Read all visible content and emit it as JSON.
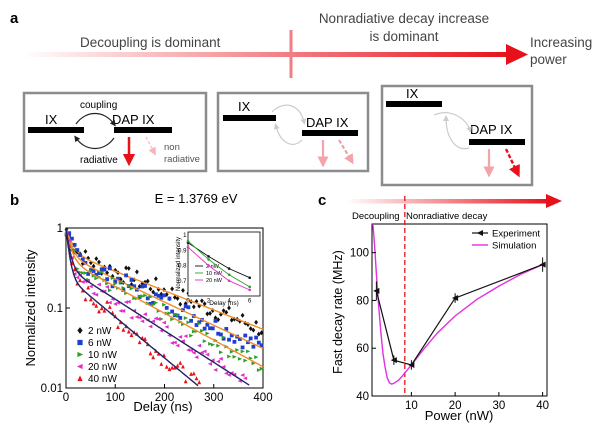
{
  "panel_a": {
    "label": "a",
    "left_text": "Decoupling is dominant",
    "mid_text": [
      "Nonradiative decay increase",
      "is dominant"
    ],
    "right_text": [
      "Increasing",
      "power"
    ],
    "box1": {
      "ix": "IX",
      "dap": "DAP IX",
      "coupling": "coupling",
      "radiative": "radiative",
      "nonrad": [
        "non",
        "radiative"
      ]
    },
    "box2": {
      "ix": "IX",
      "dap": "DAP IX"
    },
    "box3": {
      "ix": "IX",
      "dap": "DAP IX"
    },
    "colors": {
      "red": "#e8101a",
      "pink": "#f4a3a8",
      "grey": "#8c8c8c"
    }
  },
  "panel_b": {
    "label": "b",
    "energy_label": "E = 1.3769 eV"
  },
  "panel_c": {
    "label": "c",
    "left_text": "Decoupling",
    "right_text": "Nonradiative decay"
  },
  "chart_data": [
    {
      "id": "decay",
      "type": "scatter",
      "xlabel": "Delay (ns)",
      "ylabel": "Normalized intensity",
      "xlim": [
        0,
        400
      ],
      "ylim": [
        0.01,
        1
      ],
      "yscale": "log",
      "xticks": [
        0,
        100,
        200,
        300,
        400
      ],
      "yticks": [
        {
          "v": 0.01,
          "label": "0.01"
        },
        {
          "v": 0.1,
          "label": "0.1"
        },
        {
          "v": 1,
          "label": "1"
        }
      ],
      "legend_position": "bottom-left",
      "series": [
        {
          "name": "2 nW",
          "color": "#111111",
          "marker": "diamond",
          "fast": [
            0.5,
            12
          ],
          "slow": [
            0.5,
            180
          ],
          "fit": "#f28c28"
        },
        {
          "name": "6 nW",
          "color": "#1f3fd0",
          "marker": "square",
          "fast": [
            0.55,
            10
          ],
          "slow": [
            0.45,
            150
          ],
          "fit": "#f28c28"
        },
        {
          "name": "10 nW",
          "color": "#2ca02c",
          "marker": "triangle-right",
          "fast": [
            0.6,
            9
          ],
          "slow": [
            0.4,
            130
          ],
          "fit": "#f28c28"
        },
        {
          "name": "20 nW",
          "color": "#e030c8",
          "marker": "triangle-left",
          "fast": [
            0.68,
            7
          ],
          "slow": [
            0.32,
            110
          ],
          "fit": "#222266"
        },
        {
          "name": "40 nW",
          "color": "#e8101a",
          "marker": "triangle-up",
          "fast": [
            0.75,
            6
          ],
          "slow": [
            0.25,
            85
          ],
          "fit": "#222266"
        }
      ]
    },
    {
      "id": "inset",
      "type": "line",
      "xlabel": "Delay (ns)",
      "ylabel": "Normalized intensity",
      "xlim": [
        0,
        7
      ],
      "ylim": [
        0.6,
        1.02
      ],
      "xticks": [
        0,
        2,
        4,
        6
      ],
      "yticks": [
        0.7,
        0.8,
        0.9,
        1
      ],
      "series": [
        {
          "name": "2 nW",
          "color": "#111111",
          "x": [
            0,
            2,
            4,
            6
          ],
          "y": [
            0.95,
            0.86,
            0.78,
            0.72
          ]
        },
        {
          "name": "10 nW",
          "color": "#2ca02c",
          "x": [
            0,
            2,
            4,
            6
          ],
          "y": [
            0.96,
            0.84,
            0.74,
            0.66
          ]
        },
        {
          "name": "20 nW",
          "color": "#e030c8",
          "x": [
            0,
            2,
            4,
            6
          ],
          "y": [
            0.92,
            0.8,
            0.7,
            0.64
          ]
        }
      ]
    },
    {
      "id": "rate",
      "type": "line",
      "xlabel": "Power (nW)",
      "ylabel": "Fast decay rate (MHz)",
      "xlim": [
        1,
        41
      ],
      "ylim": [
        40,
        112
      ],
      "xticks": [
        10,
        20,
        30,
        40
      ],
      "yticks": [
        40,
        60,
        80,
        100
      ],
      "dashed_x": 8.5,
      "legend_position": "top-right",
      "series": [
        {
          "name": "Experiment",
          "color": "#111111",
          "x": [
            2,
            6,
            10,
            20,
            40
          ],
          "y": [
            84,
            55,
            53,
            81,
            95
          ],
          "err": [
            4,
            2,
            2,
            2,
            3
          ]
        },
        {
          "name": "Simulation",
          "color": "#e030e0",
          "x": [
            1.2,
            1.6,
            2,
            2.5,
            3,
            3.5,
            4,
            4.5,
            5,
            5.5,
            6,
            7,
            8,
            10,
            13,
            16,
            20,
            25,
            30,
            35,
            40
          ],
          "y": [
            112,
            103,
            91,
            78,
            67,
            58,
            52,
            47.5,
            45.5,
            45,
            45.3,
            46.5,
            48.5,
            53,
            60,
            66.5,
            73.5,
            80.5,
            86,
            91,
            95
          ]
        }
      ]
    }
  ]
}
